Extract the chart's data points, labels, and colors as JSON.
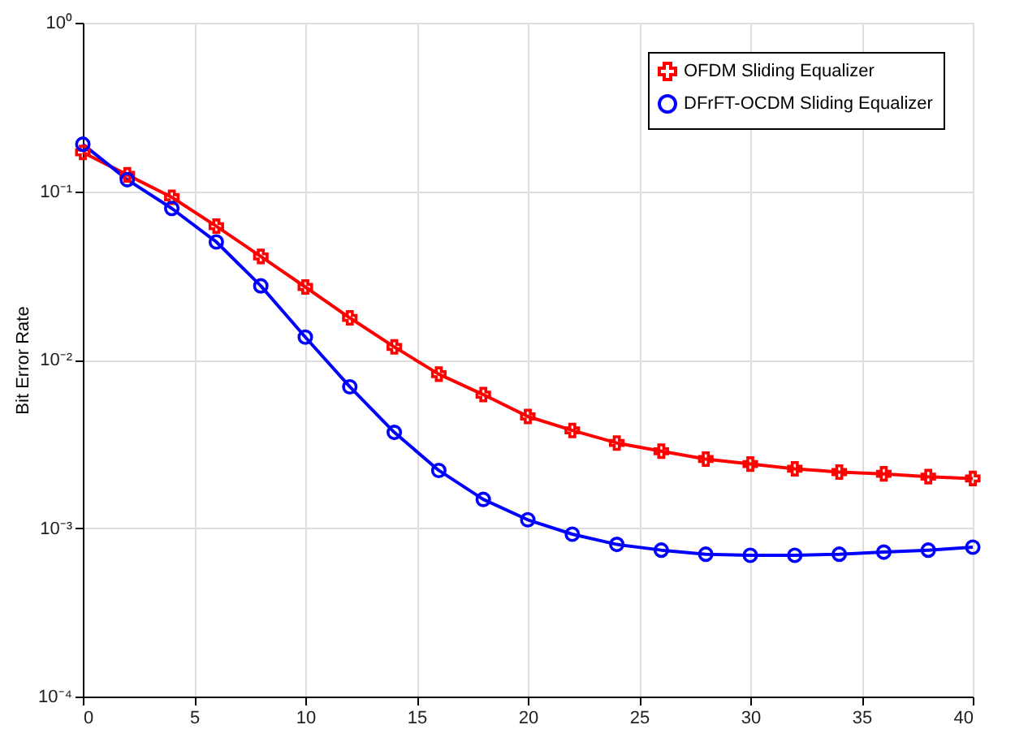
{
  "chart_data": {
    "type": "line",
    "ylabel": "Bit Error Rate",
    "x": [
      0,
      2,
      4,
      6,
      8,
      10,
      12,
      14,
      16,
      18,
      20,
      22,
      24,
      26,
      28,
      30,
      32,
      34,
      36,
      38,
      40
    ],
    "series": [
      {
        "name": "OFDM Sliding Equalizer",
        "color": "#ff0000",
        "marker": "cross",
        "values": [
          0.17,
          0.125,
          0.092,
          0.062,
          0.041,
          0.027,
          0.0177,
          0.0119,
          0.0082,
          0.0062,
          0.0046,
          0.0038,
          0.0032,
          0.00286,
          0.00257,
          0.0024,
          0.00225,
          0.00215,
          0.0021,
          0.00202,
          0.00197
        ]
      },
      {
        "name": "DFrFT-OCDM Sliding Equalizer",
        "color": "#0000ff",
        "marker": "circle",
        "values": [
          0.19,
          0.117,
          0.079,
          0.05,
          0.0274,
          0.0136,
          0.0069,
          0.0037,
          0.0022,
          0.00148,
          0.00112,
          0.00092,
          0.0008,
          0.00074,
          0.0007,
          0.00069,
          0.00069,
          0.0007,
          0.00072,
          0.00074,
          0.00077
        ]
      }
    ],
    "xlim": [
      0,
      40
    ],
    "xticks": [
      0,
      5,
      10,
      15,
      20,
      25,
      30,
      35,
      40
    ],
    "ylim": [
      0.0001,
      1
    ],
    "yticks": [
      {
        "value": 0.0001,
        "label": "10⁻⁴"
      },
      {
        "value": 0.001,
        "label": "10⁻³"
      },
      {
        "value": 0.01,
        "label": "10⁻²"
      },
      {
        "value": 0.1,
        "label": "10⁻¹"
      },
      {
        "value": 1,
        "label": "10⁰"
      }
    ],
    "log": "y",
    "grid": true,
    "legend": "top right",
    "line_style": "solid"
  }
}
